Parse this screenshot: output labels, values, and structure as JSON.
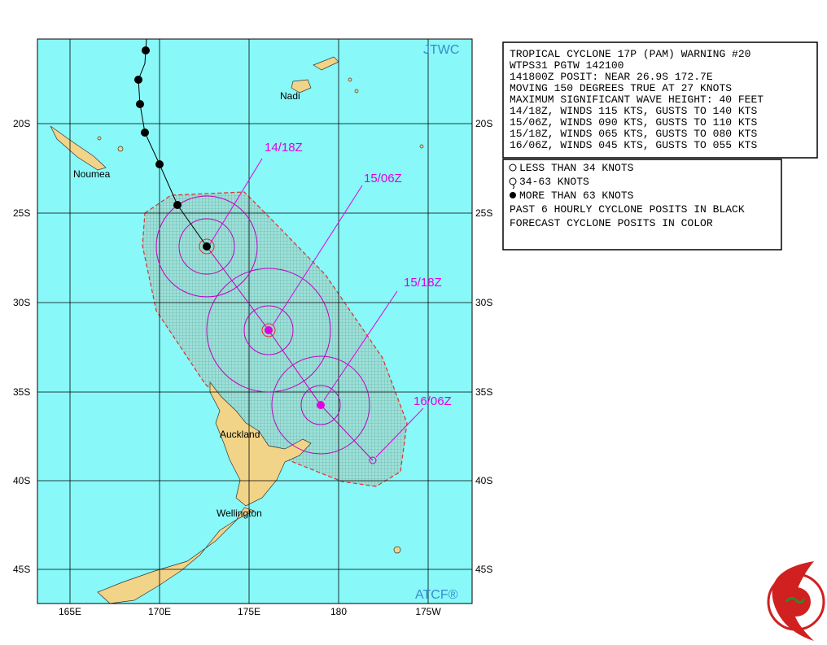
{
  "map": {
    "agency": "JTWC",
    "software": "ATCF®",
    "places": [
      "Nadi",
      "Noumea",
      "Auckland",
      "Wellington"
    ],
    "lat_labels": [
      "20S",
      "25S",
      "30S",
      "35S",
      "40S",
      "45S"
    ],
    "lon_labels": [
      "165E",
      "170E",
      "175E",
      "180",
      "175W"
    ],
    "forecast_labels": [
      "14/18Z",
      "15/06Z",
      "15/18Z",
      "16/06Z"
    ]
  },
  "warning": {
    "lines": [
      "TROPICAL CYCLONE 17P (PAM) WARNING #20",
      "WTPS31 PGTW 142100",
      "141800Z POSIT: NEAR 26.9S 172.7E",
      "MOVING 150 DEGREES TRUE AT 27 KNOTS",
      "MAXIMUM SIGNIFICANT WAVE HEIGHT: 40 FEET",
      "14/18Z, WINDS 115 KTS, GUSTS TO 140 KTS",
      "15/06Z, WINDS 090 KTS, GUSTS TO 110 KTS",
      "15/18Z, WINDS 065 KTS, GUSTS TO 080 KTS",
      "16/06Z, WINDS 045 KTS, GUSTS TO 055 KTS"
    ]
  },
  "legend": {
    "lines": [
      "LESS THAN 34 KNOTS",
      "34-63 KNOTS",
      "MORE THAN 63 KNOTS",
      "PAST 6 HOURLY CYCLONE POSITS IN BLACK",
      "FORECAST CYCLONE POSITS IN COLOR"
    ]
  }
}
